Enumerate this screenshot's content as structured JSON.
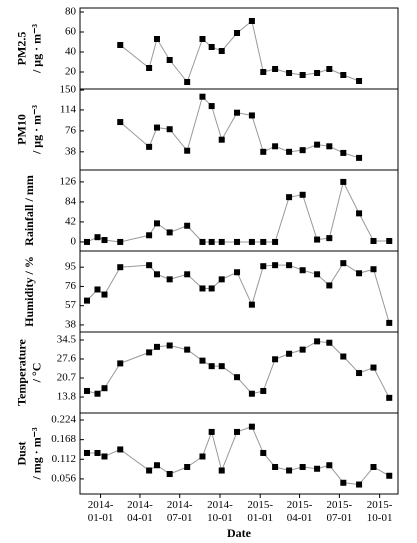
{
  "chart_data": [
    {
      "type": "line",
      "ylabel": [
        "PM2.5",
        "/ μg · m⁻³"
      ],
      "color": "#000000",
      "line_color": "#999999",
      "x": [
        "2013-12-01",
        "2013-12-25",
        "2014-01-10",
        "2014-02-15",
        "2014-04-22",
        "2014-05-10",
        "2014-06-08",
        "2014-07-18",
        "2014-08-22",
        "2014-09-12",
        "2014-10-05",
        "2014-11-09",
        "2014-12-13",
        "2015-01-08",
        "2015-02-04",
        "2015-03-08",
        "2015-04-08",
        "2015-05-11",
        "2015-06-08",
        "2015-07-10",
        "2015-08-15",
        "2015-09-17",
        "2015-10-23"
      ],
      "values": [
        null,
        null,
        null,
        47,
        24,
        53,
        32,
        10,
        53,
        45,
        41,
        59,
        71,
        20,
        23,
        19,
        17,
        19,
        23,
        17,
        11,
        null,
        null
      ],
      "xlim": [
        "2013-11-15",
        "2015-11-12"
      ],
      "ylim": [
        3,
        84
      ],
      "yticks": [
        20,
        40,
        60,
        80
      ]
    },
    {
      "type": "line",
      "ylabel": [
        "PM10",
        "/ μg · m⁻³"
      ],
      "color": "#000000",
      "line_color": "#999999",
      "x": [
        "2013-12-01",
        "2013-12-25",
        "2014-01-10",
        "2014-02-15",
        "2014-04-22",
        "2014-05-10",
        "2014-06-08",
        "2014-07-18",
        "2014-08-22",
        "2014-09-12",
        "2014-10-05",
        "2014-11-09",
        "2014-12-13",
        "2015-01-08",
        "2015-02-04",
        "2015-03-08",
        "2015-04-08",
        "2015-05-11",
        "2015-06-08",
        "2015-07-10",
        "2015-08-15",
        "2015-09-17",
        "2015-10-23"
      ],
      "values": [
        null,
        null,
        null,
        92,
        47,
        82,
        79,
        40,
        138,
        121,
        60,
        109,
        104,
        38,
        48,
        38,
        41,
        51,
        48,
        36,
        27,
        null,
        null
      ],
      "xlim": [
        "2013-11-15",
        "2015-11-12"
      ],
      "ylim": [
        5,
        152
      ],
      "yticks": [
        38,
        76,
        114,
        150
      ]
    },
    {
      "type": "line",
      "ylabel": [
        "Rainfall / mm"
      ],
      "color": "#000000",
      "line_color": "#999999",
      "x": [
        "2013-12-01",
        "2013-12-25",
        "2014-01-10",
        "2014-02-15",
        "2014-04-22",
        "2014-05-10",
        "2014-06-08",
        "2014-07-18",
        "2014-08-22",
        "2014-09-12",
        "2014-10-05",
        "2014-11-09",
        "2014-12-13",
        "2015-01-08",
        "2015-02-04",
        "2015-03-08",
        "2015-04-08",
        "2015-05-11",
        "2015-06-08",
        "2015-07-10",
        "2015-08-15",
        "2015-09-17",
        "2015-10-23"
      ],
      "values": [
        0,
        10,
        4,
        0,
        14,
        39,
        20,
        34,
        0,
        0,
        0,
        0,
        0,
        0,
        0,
        94,
        99,
        5,
        8,
        126,
        60,
        2,
        2
      ],
      "xlim": [
        "2013-11-15",
        "2015-11-12"
      ],
      "ylim": [
        -19,
        151
      ],
      "yticks": [
        0,
        42,
        84,
        126
      ]
    },
    {
      "type": "line",
      "ylabel": [
        "Humidity / %"
      ],
      "color": "#000000",
      "line_color": "#999999",
      "x": [
        "2013-12-01",
        "2013-12-25",
        "2014-01-10",
        "2014-02-15",
        "2014-04-22",
        "2014-05-10",
        "2014-06-08",
        "2014-07-18",
        "2014-08-22",
        "2014-09-12",
        "2014-10-05",
        "2014-11-09",
        "2014-12-13",
        "2015-01-08",
        "2015-02-04",
        "2015-03-08",
        "2015-04-08",
        "2015-05-11",
        "2015-06-08",
        "2015-07-10",
        "2015-08-15",
        "2015-09-17",
        "2015-10-23"
      ],
      "values": [
        62,
        73,
        68,
        95,
        97,
        88,
        83,
        88,
        74,
        74,
        83,
        90,
        58,
        96,
        97,
        97,
        92,
        88,
        77,
        99,
        89,
        93,
        40
      ],
      "xlim": [
        "2013-11-15",
        "2015-11-12"
      ],
      "ylim": [
        31,
        111
      ],
      "yticks": [
        38,
        57,
        76,
        95
      ]
    },
    {
      "type": "line",
      "ylabel": [
        "Temperature",
        "/ °C"
      ],
      "color": "#000000",
      "line_color": "#999999",
      "x": [
        "2013-12-01",
        "2013-12-25",
        "2014-01-10",
        "2014-02-15",
        "2014-04-22",
        "2014-05-10",
        "2014-06-08",
        "2014-07-18",
        "2014-08-22",
        "2014-09-12",
        "2014-10-05",
        "2014-11-09",
        "2014-12-13",
        "2015-01-08",
        "2015-02-04",
        "2015-03-08",
        "2015-04-08",
        "2015-05-11",
        "2015-06-08",
        "2015-07-10",
        "2015-08-15",
        "2015-09-17",
        "2015-10-23"
      ],
      "values": [
        16,
        15,
        17,
        26,
        30,
        32,
        32.5,
        31,
        27,
        25,
        25,
        21,
        15,
        16,
        27.5,
        29.5,
        31,
        34,
        33.5,
        28.5,
        22.5,
        24.5,
        13.5
      ],
      "xlim": [
        "2013-11-15",
        "2015-11-12"
      ],
      "ylim": [
        8,
        37.4
      ],
      "yticks": [
        13.8,
        20.7,
        27.6,
        34.5
      ]
    },
    {
      "type": "line",
      "ylabel": [
        "Dust",
        "/ mg · m⁻³"
      ],
      "color": "#000000",
      "line_color": "#999999",
      "x": [
        "2013-12-01",
        "2013-12-25",
        "2014-01-10",
        "2014-02-15",
        "2014-04-22",
        "2014-05-10",
        "2014-06-08",
        "2014-07-18",
        "2014-08-22",
        "2014-09-12",
        "2014-10-05",
        "2014-11-09",
        "2014-12-13",
        "2015-01-08",
        "2015-02-04",
        "2015-03-08",
        "2015-04-08",
        "2015-05-11",
        "2015-06-08",
        "2015-07-10",
        "2015-08-15",
        "2015-09-17",
        "2015-10-23"
      ],
      "values": [
        0.13,
        0.13,
        0.12,
        0.14,
        0.08,
        0.095,
        0.07,
        0.09,
        0.12,
        0.19,
        0.08,
        0.19,
        0.205,
        0.13,
        0.09,
        0.08,
        0.09,
        0.085,
        0.095,
        0.045,
        0.04,
        0.09,
        0.065
      ],
      "xlim": [
        "2013-11-15",
        "2015-11-12"
      ],
      "ylim": [
        0.013,
        0.244
      ],
      "yticks": [
        0.056,
        0.112,
        0.168,
        0.224
      ],
      "xlabel": "Date",
      "xticks": [
        {
          "value": "2014-01-01",
          "label": "2014-01-01"
        },
        {
          "value": "2014-04-01",
          "label": "2014-04-01"
        },
        {
          "value": "2014-07-01",
          "label": "2014-07-01"
        },
        {
          "value": "2014-10-01",
          "label": "2014-10-01"
        },
        {
          "value": "2015-01-01",
          "label": "2015-01-01"
        },
        {
          "value": "2015-04-01",
          "label": "2015-04-01"
        },
        {
          "value": "2015-07-01",
          "label": "2015-07-01"
        },
        {
          "value": "2015-10-01",
          "label": "2015-10-01"
        }
      ]
    }
  ]
}
